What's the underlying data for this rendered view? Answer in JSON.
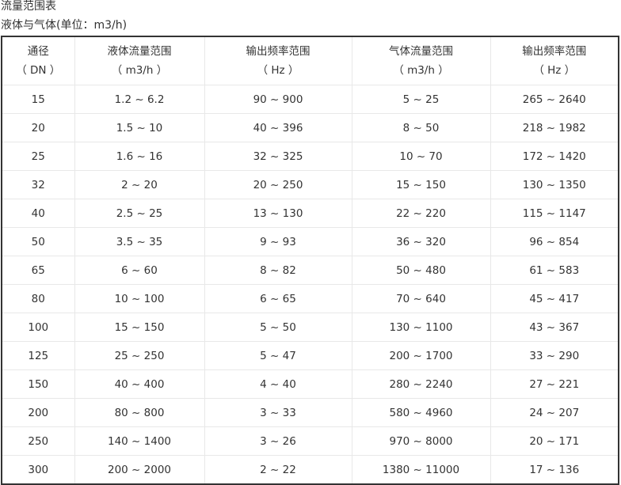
{
  "title": "流量范围表",
  "subtitle": "液体与气体(单位：m3/h)",
  "headers": [
    {
      "line1": "通径",
      "line2": "（ DN ）"
    },
    {
      "line1": "液体流量范围",
      "line2": "（ m3/h ）"
    },
    {
      "line1": "输出频率范围",
      "line2": "（ Hz ）"
    },
    {
      "line1": "气体流量范围",
      "line2": "（ m3/h ）"
    },
    {
      "line1": "输出频率范围",
      "line2": "（ Hz ）"
    }
  ],
  "rows": [
    [
      "15",
      "1.2 ~ 6.2",
      "90 ~ 900",
      "5 ~ 25",
      "265 ~ 2640"
    ],
    [
      "20",
      "1.5 ~ 10",
      "40 ~ 396",
      "8 ~ 50",
      "218 ~ 1982"
    ],
    [
      "25",
      "1.6 ~ 16",
      "32 ~ 325",
      "10 ~ 70",
      "172 ~ 1420"
    ],
    [
      "32",
      "2 ~ 20",
      "20 ~ 250",
      "15 ~ 150",
      "130 ~ 1350"
    ],
    [
      "40",
      "2.5 ~ 25",
      "13 ~ 130",
      "22 ~ 220",
      "115 ~ 1147"
    ],
    [
      "50",
      "3.5 ~ 35",
      "9 ~ 93",
      "36 ~ 320",
      "96 ~ 854"
    ],
    [
      "65",
      "6 ~ 60",
      "8 ~ 82",
      "50 ~ 480",
      "61 ~ 583"
    ],
    [
      "80",
      "10 ~ 100",
      "6 ~ 65",
      "70 ~ 640",
      "45 ~ 417"
    ],
    [
      "100",
      "15 ~ 150",
      "5 ~ 50",
      "130 ~ 1100",
      "43 ~ 367"
    ],
    [
      "125",
      "25 ~ 250",
      "5 ~ 47",
      "200 ~ 1700",
      "33 ~ 290"
    ],
    [
      "150",
      "40 ~ 400",
      "4 ~ 40",
      "280 ~ 2240",
      "27 ~ 221"
    ],
    [
      "200",
      "80 ~ 800",
      "3 ~ 33",
      "580 ~ 4960",
      "24 ~ 207"
    ],
    [
      "250",
      "140 ~ 1400",
      "3 ~ 26",
      "970 ~ 8000",
      "20 ~ 171"
    ],
    [
      "300",
      "200 ~ 2000",
      "2 ~ 22",
      "1380 ~ 11000",
      "17 ~ 136"
    ]
  ]
}
